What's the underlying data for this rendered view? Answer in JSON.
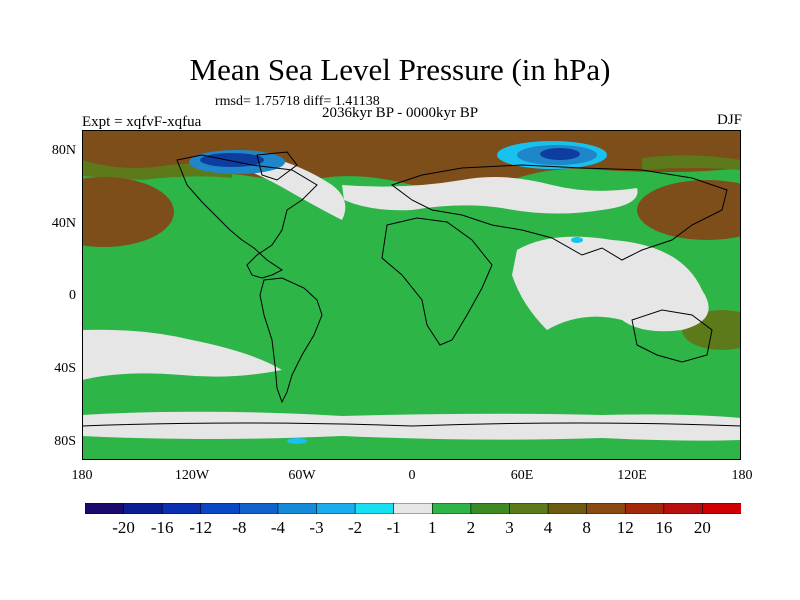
{
  "header": {
    "title": "Mean Sea Level Pressure (in hPa)",
    "stats": "rmsd= 1.75718 diff= 1.41138",
    "period": "2036kyr BP - 0000kyr BP",
    "experiment": "Expt = xqfvF-xqfua",
    "season": "DJF"
  },
  "map": {
    "y_ticks": [
      "80N",
      "40N",
      "0",
      "40S",
      "80S"
    ],
    "x_ticks": [
      "180",
      "120W",
      "60W",
      "0",
      "60E",
      "120E",
      "180"
    ],
    "colors": {
      "brown": "#7d4e1a",
      "olive": "#5c7a1a",
      "green": "#2db548",
      "white": "#e6e6e6",
      "light_blue": "#19c1ee",
      "mid_blue": "#1f86c9",
      "dark_blue": "#0d3d9e",
      "coast": "#000000"
    }
  },
  "colorbar": {
    "labels": [
      "-20",
      "-16",
      "-12",
      "-8",
      "-4",
      "-3",
      "-2",
      "-1",
      "1",
      "2",
      "3",
      "4",
      "8",
      "12",
      "16",
      "20"
    ],
    "colors": [
      "#1a0a6e",
      "#0c1c92",
      "#0a2fb0",
      "#0a47c4",
      "#1063cc",
      "#148ad8",
      "#18acec",
      "#19e0f0",
      "#e6e6e6",
      "#2db548",
      "#3d8a22",
      "#5c7a1a",
      "#6e5a10",
      "#8a4a12",
      "#a22a0a",
      "#b80e0e",
      "#d00000"
    ]
  }
}
